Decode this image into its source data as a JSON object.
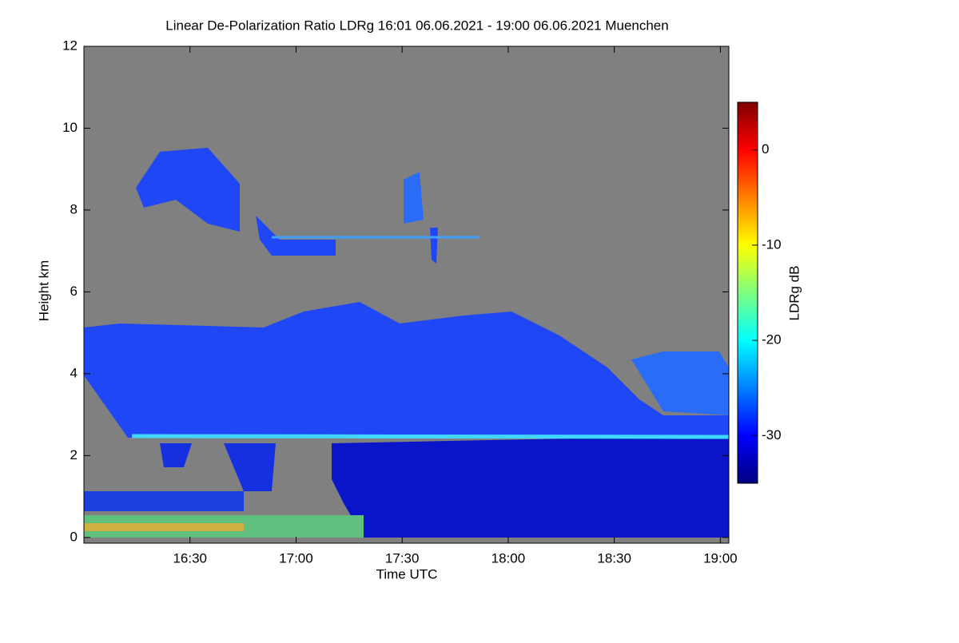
{
  "chart_data": {
    "type": "heatmap",
    "title": "Linear De-Polarization Ratio LDRg   16:01 06.06.2021 - 19:00 06.06.2021 Muenchen",
    "x_label": "Time UTC",
    "y_label": "Height km",
    "colorbar_label": "LDRg dB",
    "xlim": [
      16.0,
      19.04
    ],
    "xticks": [
      {
        "value": 16.5,
        "label": "16:30"
      },
      {
        "value": 17.0,
        "label": "17:00"
      },
      {
        "value": 17.5,
        "label": "17:30"
      },
      {
        "value": 18.0,
        "label": "18:00"
      },
      {
        "value": 18.5,
        "label": "18:30"
      },
      {
        "value": 19.0,
        "label": "19:00"
      }
    ],
    "ylim": [
      -0.14,
      12
    ],
    "yticks": [
      0,
      2,
      4,
      6,
      8,
      10,
      12
    ],
    "clim": [
      -35,
      5
    ],
    "cticks": [
      0,
      -10,
      -20,
      -30
    ],
    "colormap": [
      "#00007f",
      "#0000ff",
      "#007fff",
      "#00ffff",
      "#7fff7f",
      "#ffff00",
      "#ff7f00",
      "#ff0000",
      "#7f0000"
    ]
  }
}
